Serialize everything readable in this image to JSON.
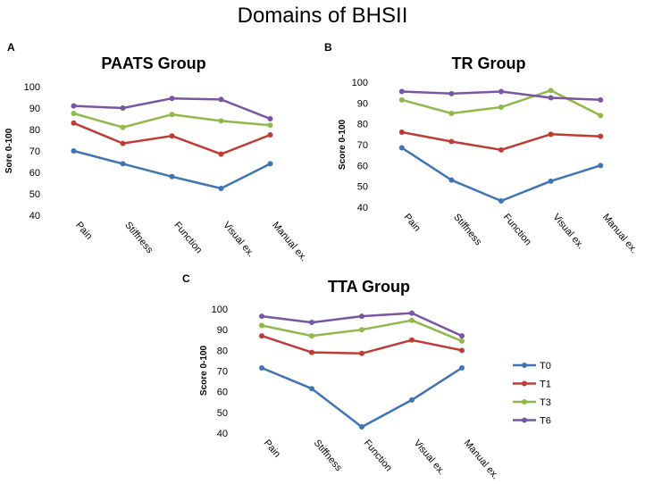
{
  "figure_title": "Domains of BHSII",
  "legend": [
    {
      "name": "T0",
      "color": "#3f74b5"
    },
    {
      "name": "T1",
      "color": "#be3c37"
    },
    {
      "name": "T3",
      "color": "#8fb94a"
    },
    {
      "name": "T6",
      "color": "#7b55a0"
    }
  ],
  "chart_data": [
    {
      "panel": "A",
      "type": "line",
      "title": "PAATS Group",
      "xlabel": "",
      "ylabel": "Sore 0-100",
      "categories": [
        "Pain",
        "Stiffness",
        "Function",
        "Visual ex.",
        "Manual ex."
      ],
      "ylim": [
        40,
        100
      ],
      "yticks": [
        40,
        50,
        60,
        70,
        80,
        90,
        100
      ],
      "series": [
        {
          "name": "T0",
          "color": "#3f74b5",
          "values": [
            70,
            64,
            58,
            52.5,
            64
          ]
        },
        {
          "name": "T1",
          "color": "#be3c37",
          "values": [
            83,
            73.5,
            77,
            68.5,
            77.5
          ]
        },
        {
          "name": "T3",
          "color": "#8fb94a",
          "values": [
            87.5,
            81,
            87,
            84,
            82
          ]
        },
        {
          "name": "T6",
          "color": "#7b55a0",
          "values": [
            91,
            90,
            94.5,
            94,
            85
          ]
        }
      ]
    },
    {
      "panel": "B",
      "type": "line",
      "title": "TR Group",
      "xlabel": "",
      "ylabel": "Score 0-100",
      "categories": [
        "Pain",
        "Stiffness",
        "Function",
        "Visual ex.",
        "Manual ex."
      ],
      "ylim": [
        40,
        100
      ],
      "yticks": [
        40,
        50,
        60,
        70,
        80,
        90,
        100
      ],
      "series": [
        {
          "name": "T0",
          "color": "#3f74b5",
          "values": [
            68.5,
            53,
            43,
            52.5,
            60
          ]
        },
        {
          "name": "T1",
          "color": "#be3c37",
          "values": [
            76,
            71.5,
            67.5,
            75,
            74
          ]
        },
        {
          "name": "T3",
          "color": "#8fb94a",
          "values": [
            91.5,
            85,
            88,
            96,
            84
          ]
        },
        {
          "name": "T6",
          "color": "#7b55a0",
          "values": [
            95.5,
            94.5,
            95.5,
            92.5,
            91.5
          ]
        }
      ]
    },
    {
      "panel": "C",
      "type": "line",
      "title": "TTA Group",
      "xlabel": "",
      "ylabel": "Score 0-100",
      "categories": [
        "Pain",
        "Stiffness",
        "Function",
        "Visual ex.",
        "Manual ex."
      ],
      "ylim": [
        40,
        100
      ],
      "yticks": [
        40,
        50,
        60,
        70,
        80,
        90,
        100
      ],
      "legend_position": "right",
      "series": [
        {
          "name": "T0",
          "color": "#3f74b5",
          "values": [
            71.5,
            61.5,
            43,
            56,
            71.5
          ]
        },
        {
          "name": "T1",
          "color": "#be3c37",
          "values": [
            87,
            79,
            78.5,
            85,
            80
          ]
        },
        {
          "name": "T3",
          "color": "#8fb94a",
          "values": [
            92,
            87,
            90,
            94.5,
            84.5
          ]
        },
        {
          "name": "T6",
          "color": "#7b55a0",
          "values": [
            96.5,
            93.5,
            96.5,
            98,
            87
          ]
        }
      ]
    }
  ]
}
